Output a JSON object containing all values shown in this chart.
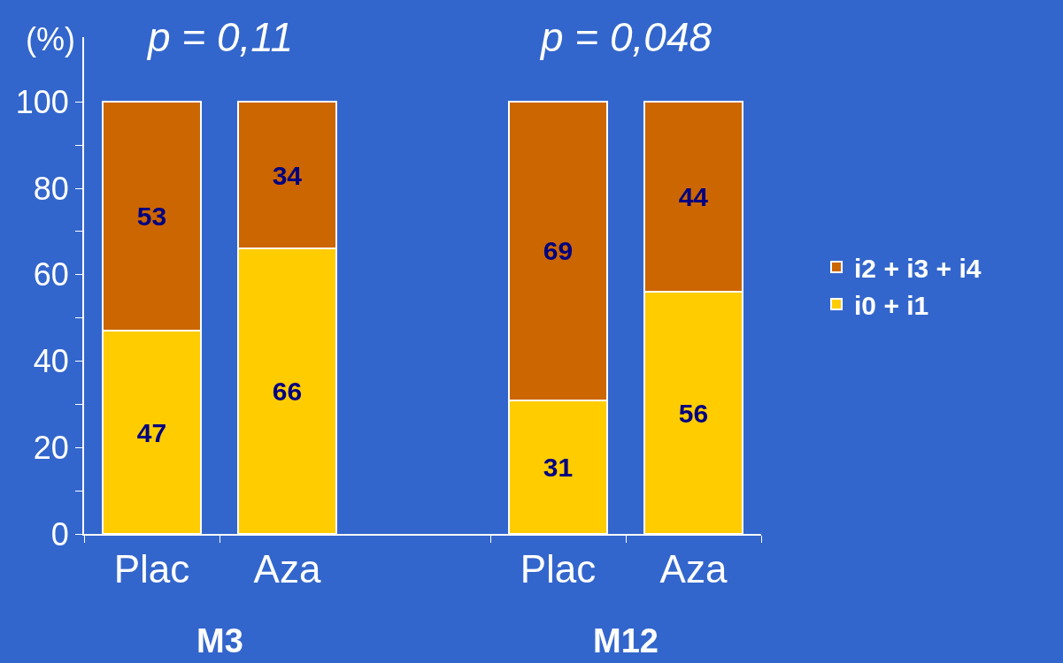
{
  "chart_data": {
    "type": "bar",
    "ylabel": "(%)",
    "categories": [
      "Plac",
      "Aza",
      null,
      "Plac",
      "Aza"
    ],
    "series": [
      {
        "name": "i0 + i1",
        "color": "#ffcc00",
        "values": [
          47,
          66,
          null,
          31,
          56
        ]
      },
      {
        "name": "i2 + i3 + i4",
        "color": "#cc6600",
        "values": [
          53,
          34,
          null,
          69,
          44
        ]
      }
    ],
    "stacked": true,
    "data_labels": true,
    "legend": "right",
    "ylim": [
      0,
      115
    ],
    "yticks": [
      0,
      {
        "value": 10,
        "label": null
      },
      20,
      {
        "value": 30,
        "label": null
      },
      40,
      {
        "value": 50,
        "label": null
      },
      60,
      {
        "value": 70,
        "label": null
      },
      80,
      {
        "value": 90,
        "label": null
      },
      100
    ],
    "annotations": [
      "p = 0,11",
      "p = 0,048",
      "M3",
      "M12"
    ]
  }
}
